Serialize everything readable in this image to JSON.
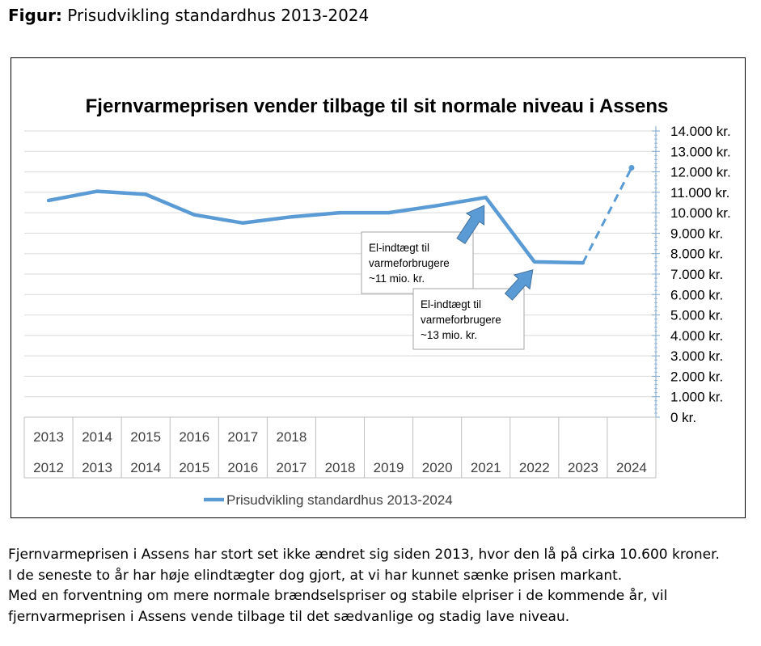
{
  "figure_heading": {
    "prefix": "Figur:",
    "text": "Prisudvikling standardhus 2013-2024"
  },
  "chart_data": {
    "type": "line",
    "title": "Fjernvarmeprisen vender tilbage til sit normale niveau i Assens",
    "x_categories_top": [
      "2013",
      "2014",
      "2015",
      "2016",
      "2017",
      "2018",
      "",
      "",
      "",
      "",
      "",
      "",
      ""
    ],
    "x_categories_bottom": [
      "2012",
      "2013",
      "2014",
      "2015",
      "2016",
      "2017",
      "2018",
      "2019",
      "2020",
      "2021",
      "2022",
      "2023",
      "2024"
    ],
    "y_ticks": [
      "0 kr.",
      "1.000 kr.",
      "2.000 kr.",
      "3.000 kr.",
      "4.000 kr.",
      "5.000 kr.",
      "6.000 kr.",
      "7.000 kr.",
      "8.000 kr.",
      "9.000 kr.",
      "10.000 kr.",
      "11.000 kr.",
      "12.000 kr.",
      "13.000 kr.",
      "14.000 kr."
    ],
    "ylim": [
      0,
      14000
    ],
    "y_axis_position": "right",
    "grid": true,
    "legend_position": "bottom",
    "series": [
      {
        "name": "Prisudvikling standardhus 2013-2024",
        "color": "#5b9bd5",
        "values": [
          10600,
          11050,
          10900,
          9900,
          9500,
          9800,
          10000,
          10000,
          10350,
          10750,
          7600,
          7550,
          12200
        ],
        "solid_points": 12,
        "dashed_segment": "last"
      }
    ],
    "annotations": [
      {
        "lines": [
          "El-indtægt til",
          "varmeforbrugere",
          "~11 mio. kr."
        ],
        "arrow_to_category": "2021",
        "arrow_color": "#5b9bd5"
      },
      {
        "lines": [
          "El-indtægt til",
          "varmeforbrugere",
          "~13 mio. kr."
        ],
        "arrow_to_category": "2022",
        "arrow_color": "#5b9bd5"
      }
    ]
  },
  "caption": [
    "Fjernvarmeprisen i Assens har stort set ikke ændret sig siden 2013, hvor den lå på cirka 10.600 kroner.",
    "I de seneste to år har høje elindtægter dog gjort, at vi har kunnet sænke prisen markant.",
    "Med en forventning om mere normale brændselspriser og stabile elpriser i de kommende år, vil",
    "fjernvarmeprisen i Assens vende tilbage til det sædvanlige og stadig lave niveau."
  ]
}
